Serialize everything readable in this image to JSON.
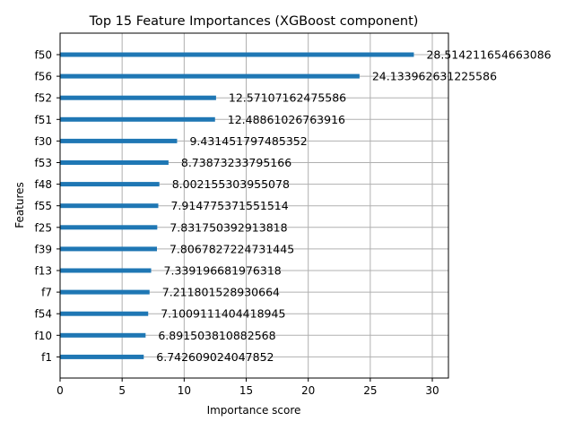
{
  "chart_data": {
    "type": "bar",
    "orientation": "horizontal",
    "title": "Top 15 Feature Importances (XGBoost component)",
    "xlabel": "Importance score",
    "ylabel": "Features",
    "xlim": [
      0,
      31.3
    ],
    "x_ticks": [
      0,
      5,
      10,
      15,
      20,
      25,
      30
    ],
    "grid": true,
    "bar_color": "#1f77b4",
    "categories": [
      "f50",
      "f56",
      "f52",
      "f51",
      "f30",
      "f53",
      "f48",
      "f55",
      "f25",
      "f39",
      "f13",
      "f7",
      "f54",
      "f10",
      "f1"
    ],
    "values": [
      28.514211654663086,
      24.133962631225586,
      12.57107162475586,
      12.48861026763916,
      9.431451797485352,
      8.73873233795166,
      8.002155303955078,
      7.914775371551514,
      7.831750392913818,
      7.8067827224731445,
      7.339196681976318,
      7.211801528930664,
      7.1009111404418945,
      6.891503810882568,
      6.742609024047852
    ],
    "value_labels": [
      "28.514211654663086",
      "24.133962631225586",
      "12.57107162475586",
      "12.48861026763916",
      "9.431451797485352",
      "8.73873233795166",
      "8.002155303955078",
      "7.914775371551514",
      "7.831750392913818",
      "7.8067827224731445",
      "7.339196681976318",
      "7.211801528930664",
      "7.1009111404418945",
      "6.891503810882568",
      "6.742609024047852"
    ]
  }
}
